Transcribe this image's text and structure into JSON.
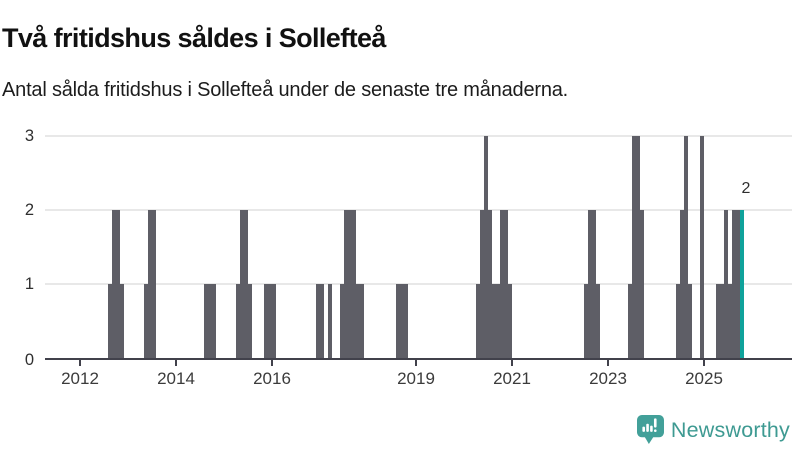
{
  "chart_data": {
    "type": "bar",
    "title": "Två fritidshus såldes i Sollefteå",
    "subtitle": "Antal sålda fritidshus i Sollefteå under de senaste tre månaderna.",
    "ylim": [
      0,
      3
    ],
    "y_ticks": [
      "0",
      "1",
      "2",
      "3"
    ],
    "x_ticks": [
      "2012",
      "2014",
      "2016",
      "2019",
      "2021",
      "2023",
      "2025"
    ],
    "grid": true,
    "legend": false,
    "bar_color": "#5e5e66",
    "highlight_color": "#0fa29b",
    "annotation": {
      "label": "2",
      "month": "2025-10"
    },
    "bars": [
      {
        "month": "2012-08",
        "value": 1
      },
      {
        "month": "2012-09",
        "value": 2
      },
      {
        "month": "2012-10",
        "value": 2
      },
      {
        "month": "2012-11",
        "value": 1
      },
      {
        "month": "2013-05",
        "value": 1
      },
      {
        "month": "2013-06",
        "value": 2
      },
      {
        "month": "2013-07",
        "value": 2
      },
      {
        "month": "2014-08",
        "value": 1
      },
      {
        "month": "2014-09",
        "value": 1
      },
      {
        "month": "2014-10",
        "value": 1
      },
      {
        "month": "2015-04",
        "value": 1
      },
      {
        "month": "2015-05",
        "value": 2
      },
      {
        "month": "2015-06",
        "value": 2
      },
      {
        "month": "2015-07",
        "value": 1
      },
      {
        "month": "2015-11",
        "value": 1
      },
      {
        "month": "2015-12",
        "value": 1
      },
      {
        "month": "2016-01",
        "value": 1
      },
      {
        "month": "2016-12",
        "value": 1
      },
      {
        "month": "2017-01",
        "value": 1
      },
      {
        "month": "2017-03",
        "value": 1
      },
      {
        "month": "2017-06",
        "value": 1
      },
      {
        "month": "2017-07",
        "value": 2
      },
      {
        "month": "2017-08",
        "value": 2
      },
      {
        "month": "2017-09",
        "value": 2
      },
      {
        "month": "2017-10",
        "value": 1
      },
      {
        "month": "2017-11",
        "value": 1
      },
      {
        "month": "2018-08",
        "value": 1
      },
      {
        "month": "2018-09",
        "value": 1
      },
      {
        "month": "2018-10",
        "value": 1
      },
      {
        "month": "2020-04",
        "value": 1
      },
      {
        "month": "2020-05",
        "value": 2
      },
      {
        "month": "2020-06",
        "value": 3
      },
      {
        "month": "2020-07",
        "value": 2
      },
      {
        "month": "2020-08",
        "value": 1
      },
      {
        "month": "2020-09",
        "value": 1
      },
      {
        "month": "2020-10",
        "value": 2
      },
      {
        "month": "2020-11",
        "value": 2
      },
      {
        "month": "2020-12",
        "value": 1
      },
      {
        "month": "2022-07",
        "value": 1
      },
      {
        "month": "2022-08",
        "value": 2
      },
      {
        "month": "2022-09",
        "value": 2
      },
      {
        "month": "2022-10",
        "value": 1
      },
      {
        "month": "2023-06",
        "value": 1
      },
      {
        "month": "2023-07",
        "value": 3
      },
      {
        "month": "2023-08",
        "value": 3
      },
      {
        "month": "2023-09",
        "value": 2
      },
      {
        "month": "2024-06",
        "value": 1
      },
      {
        "month": "2024-07",
        "value": 2
      },
      {
        "month": "2024-08",
        "value": 3
      },
      {
        "month": "2024-09",
        "value": 1
      },
      {
        "month": "2024-12",
        "value": 3
      },
      {
        "month": "2025-04",
        "value": 1
      },
      {
        "month": "2025-05",
        "value": 1
      },
      {
        "month": "2025-06",
        "value": 2
      },
      {
        "month": "2025-07",
        "value": 1
      },
      {
        "month": "2025-08",
        "value": 2
      },
      {
        "month": "2025-09",
        "value": 2
      },
      {
        "month": "2025-10",
        "value": 2,
        "highlight": true
      }
    ]
  },
  "footer": {
    "brand": "Newsworthy"
  }
}
